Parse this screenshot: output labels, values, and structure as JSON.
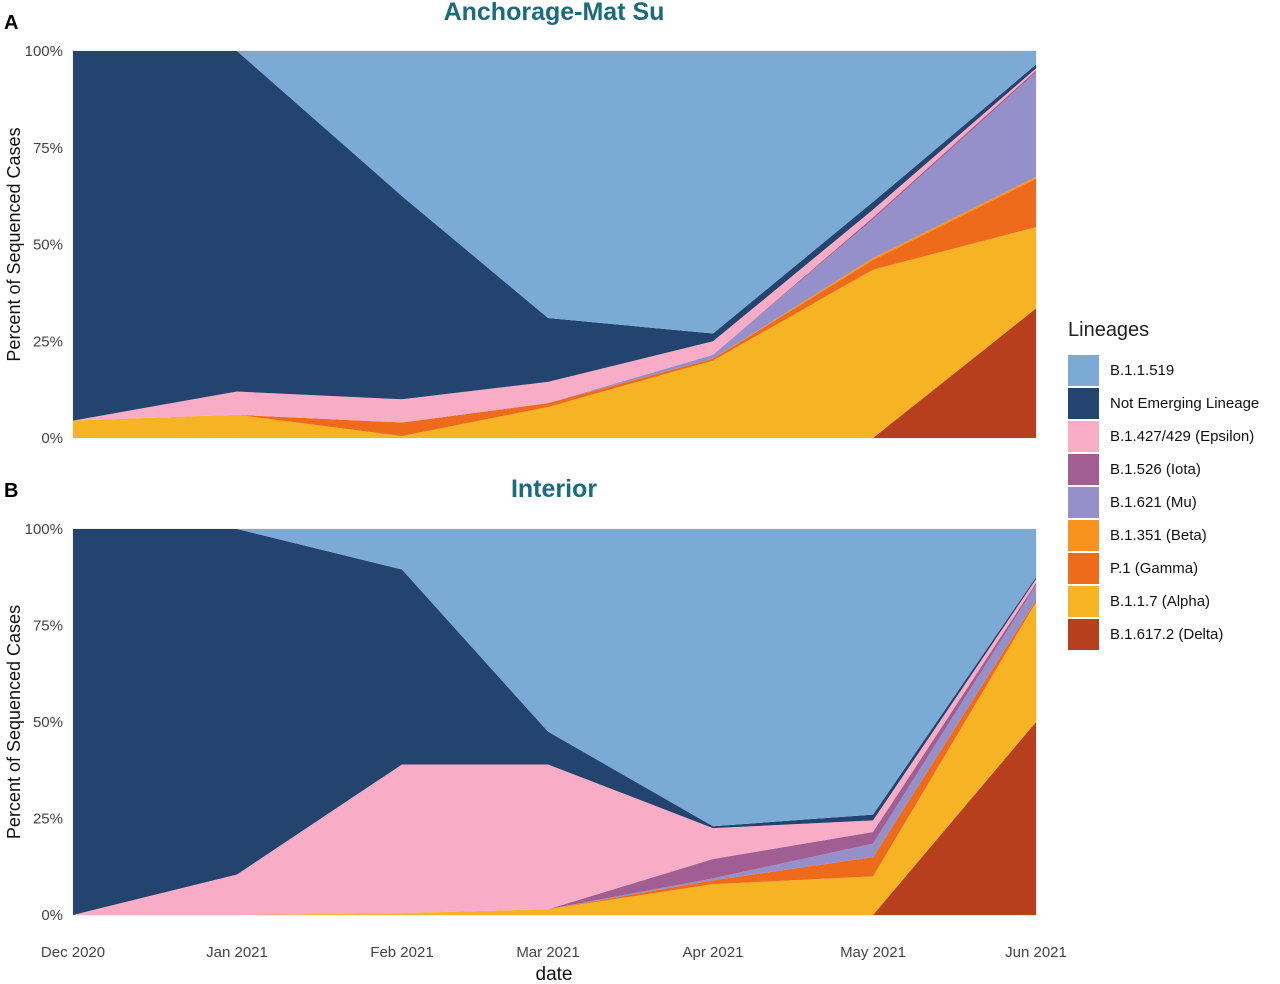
{
  "legend": {
    "title": "Lineages"
  },
  "chart_data": {
    "type": "area",
    "stacked": true,
    "x_axis_label": "date",
    "y_axis_label": "Percent of Sequenced Cases",
    "x_ticks": [
      "Dec 2020",
      "Jan 2021",
      "Feb 2021",
      "Mar 2021",
      "Apr 2021",
      "May 2021",
      "Jun 2021"
    ],
    "y_ticks": [
      "0%",
      "25%",
      "50%",
      "75%",
      "100%"
    ],
    "ylim": [
      0,
      100
    ],
    "grid": true,
    "legend_position": "right",
    "series_order_bottom_to_top": [
      "B.1.617.2 (Delta)",
      "B.1.1.7 (Alpha)",
      "P.1 (Gamma)",
      "B.1.351 (Beta)",
      "B.1.621 (Mu)",
      "B.1.526 (Iota)",
      "B.1.427/429 (Epsilon)",
      "Not Emerging Lineage",
      "B.1.1.519"
    ],
    "legend_order": [
      "B.1.1.519",
      "Not Emerging Lineage",
      "B.1.427/429 (Epsilon)",
      "B.1.526 (Iota)",
      "B.1.621 (Mu)",
      "B.1.351 (Beta)",
      "P.1 (Gamma)",
      "B.1.1.7 (Alpha)",
      "B.1.617.2 (Delta)"
    ],
    "colors": {
      "B.1.1.519": "#7BABD4",
      "Not Emerging Lineage": "#23446E",
      "B.1.427/429 (Epsilon)": "#F9ACC6",
      "B.1.526 (Iota)": "#A15E92",
      "B.1.621 (Mu)": "#9590CA",
      "B.1.351 (Beta)": "#F8931E",
      "P.1 (Gamma)": "#EE6B1B",
      "B.1.1.7 (Alpha)": "#F6B323",
      "B.1.617.2 (Delta)": "#B73F1E"
    },
    "panels": [
      {
        "label": "A",
        "title": "Anchorage-Mat Su",
        "series": [
          {
            "name": "B.1.617.2 (Delta)",
            "values": [
              0,
              0,
              0,
              0,
              0,
              0,
              33.5
            ]
          },
          {
            "name": "B.1.1.7 (Alpha)",
            "values": [
              4.5,
              6,
              0.5,
              8,
              20,
              43.5,
              21
            ]
          },
          {
            "name": "P.1 (Gamma)",
            "values": [
              0,
              0,
              3.5,
              1,
              0.5,
              2.5,
              12.5
            ]
          },
          {
            "name": "B.1.351 (Beta)",
            "values": [
              0,
              0,
              0,
              0,
              0,
              0.5,
              0.5
            ]
          },
          {
            "name": "B.1.621 (Mu)",
            "values": [
              0,
              0,
              0,
              0,
              1,
              10,
              27
            ]
          },
          {
            "name": "B.1.526 (Iota)",
            "values": [
              0,
              0,
              0,
              0,
              0,
              0.5,
              0.5
            ]
          },
          {
            "name": "B.1.427/429 (Epsilon)",
            "values": [
              0,
              6,
              6,
              5.5,
              3.5,
              2,
              0.5
            ]
          },
          {
            "name": "Not Emerging Lineage",
            "values": [
              95.5,
              88,
              52.5,
              16.5,
              2,
              2,
              1
            ]
          },
          {
            "name": "B.1.1.519",
            "values": [
              0,
              0,
              37.5,
              69,
              73,
              39,
              3.5
            ]
          }
        ]
      },
      {
        "label": "B",
        "title": "Interior",
        "series": [
          {
            "name": "B.1.617.2 (Delta)",
            "values": [
              0,
              0,
              0,
              0,
              0,
              0,
              50
            ]
          },
          {
            "name": "B.1.1.7 (Alpha)",
            "values": [
              0,
              0,
              0.5,
              1.5,
              8,
              10,
              31
            ]
          },
          {
            "name": "P.1 (Gamma)",
            "values": [
              0,
              0,
              0,
              0,
              1,
              5,
              0.5
            ]
          },
          {
            "name": "B.1.351 (Beta)",
            "values": [
              0,
              0,
              0,
              0,
              0,
              0,
              0
            ]
          },
          {
            "name": "B.1.621 (Mu)",
            "values": [
              0,
              0,
              0,
              0,
              0.5,
              3.5,
              4
            ]
          },
          {
            "name": "B.1.526 (Iota)",
            "values": [
              0,
              0,
              0,
              0,
              5,
              3,
              0.5
            ]
          },
          {
            "name": "B.1.427/429 (Epsilon)",
            "values": [
              0,
              10.5,
              38.5,
              37.5,
              8,
              3,
              1
            ]
          },
          {
            "name": "Not Emerging Lineage",
            "values": [
              100,
              89.5,
              50.5,
              8.5,
              0.5,
              1.5,
              0.5
            ]
          },
          {
            "name": "B.1.1.519",
            "values": [
              0,
              0,
              10.5,
              52.5,
              77,
              74,
              12.5
            ]
          }
        ]
      }
    ]
  }
}
